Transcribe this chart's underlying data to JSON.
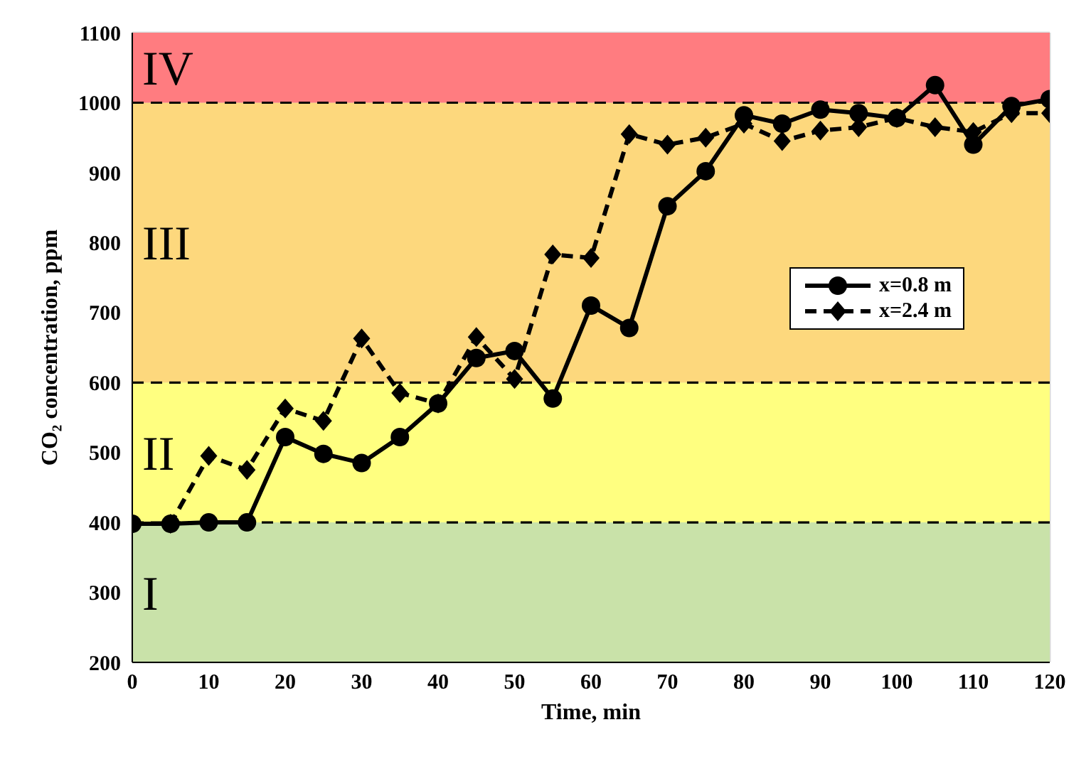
{
  "chart_data": {
    "type": "line",
    "xlabel": "Time, min",
    "ylabel": "CO₂ concentration, ppm",
    "x": [
      0,
      5,
      10,
      15,
      20,
      25,
      30,
      35,
      40,
      45,
      50,
      55,
      60,
      65,
      70,
      75,
      80,
      85,
      90,
      95,
      100,
      105,
      110,
      115,
      120
    ],
    "series": [
      {
        "name": "x=0.8 m",
        "color": "#000000",
        "marker": "circle",
        "line_style": "solid",
        "values": [
          398,
          398,
          400,
          400,
          522,
          498,
          485,
          522,
          570,
          635,
          645,
          577,
          710,
          678,
          852,
          902,
          982,
          970,
          990,
          985,
          978,
          1025,
          940,
          995,
          1005
        ]
      },
      {
        "name": "x=2.4 m",
        "color": "#000000",
        "marker": "diamond",
        "line_style": "dashed",
        "values": [
          398,
          398,
          495,
          475,
          563,
          545,
          663,
          585,
          570,
          665,
          605,
          783,
          778,
          955,
          940,
          950,
          970,
          945,
          960,
          965,
          978,
          965,
          958,
          985,
          985
        ]
      }
    ],
    "xlim": [
      0,
      120
    ],
    "xticks": [
      0,
      10,
      20,
      30,
      40,
      50,
      60,
      70,
      80,
      90,
      100,
      110,
      120
    ],
    "ylim": [
      200,
      1100
    ],
    "yticks": [
      200,
      300,
      400,
      500,
      600,
      700,
      800,
      900,
      1000,
      1100
    ],
    "bands": [
      {
        "axis": "y",
        "from": 200,
        "to": 400,
        "label": "I",
        "color": "#c9e2a9"
      },
      {
        "axis": "y",
        "from": 400,
        "to": 600,
        "label": "II",
        "color": "#ffff80"
      },
      {
        "axis": "y",
        "from": 600,
        "to": 1000,
        "label": "III",
        "color": "#fdd87d"
      },
      {
        "axis": "y",
        "from": 1000,
        "to": 1100,
        "label": "IV",
        "color": "#ff7c80"
      }
    ],
    "grid": true,
    "legend": "right"
  }
}
